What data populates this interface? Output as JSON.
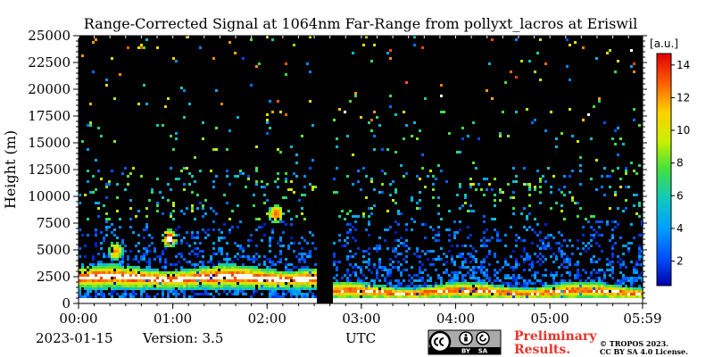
{
  "chart_data": {
    "type": "heatmap",
    "title": "Range-Corrected Signal at 1064nm Far-Range from pollyxt_lacros at Eriswil",
    "ylabel": "Height (m)",
    "xlabel": "",
    "x_ticks": [
      "00:00",
      "01:00",
      "02:00",
      "03:00",
      "04:00",
      "05:00",
      "05:59"
    ],
    "x_tick_values_hours": [
      0,
      1,
      2,
      3,
      4,
      5,
      5.983
    ],
    "xlim_hours": [
      0,
      5.983
    ],
    "y_ticks": [
      "0",
      "2500",
      "5000",
      "7500",
      "10000",
      "12500",
      "15000",
      "17500",
      "20000",
      "22500",
      "25000"
    ],
    "y_tick_values": [
      0,
      2500,
      5000,
      7500,
      10000,
      12500,
      15000,
      17500,
      20000,
      22500,
      25000
    ],
    "ylim": [
      0,
      25000
    ],
    "colorbar": {
      "unit": "[a.u.]",
      "ticks": [
        "2",
        "4",
        "6",
        "8",
        "10",
        "12",
        "14"
      ],
      "tick_values": [
        2,
        4,
        6,
        8,
        10,
        12,
        14
      ],
      "range": [
        0.5,
        14.7
      ],
      "colormap": "jet"
    },
    "features": [
      {
        "kind": "data-gap",
        "from_hours": 2.5,
        "to_hours": 2.67
      },
      {
        "kind": "boundary-layer",
        "from_hours": 0,
        "to_hours": 5.983,
        "top_m": 700,
        "value": 14
      },
      {
        "kind": "aerosol-layer",
        "from_hours": 0,
        "to_hours": 2.5,
        "bottom_m": 1500,
        "top_m": 3500,
        "value": 13
      },
      {
        "kind": "aerosol-layer",
        "from_hours": 2.67,
        "to_hours": 5.983,
        "bottom_m": 500,
        "top_m": 1900,
        "value": 12
      },
      {
        "kind": "cloud",
        "center_hours": 0.38,
        "center_m": 5000,
        "value": 11
      },
      {
        "kind": "cloud",
        "center_hours": 0.95,
        "center_m": 6200,
        "value": 13
      },
      {
        "kind": "cloud",
        "center_hours": 2.08,
        "center_m": 8500,
        "value": 12
      }
    ]
  },
  "footer": {
    "date": "2023-01-15",
    "version": "Version: 3.5",
    "timezone": "UTC",
    "preliminary_line1": "Preliminary",
    "preliminary_line2": "Results.",
    "copyright_line1": "© TROPOS 2023.",
    "copyright_line2": "CC BY SA 4.0 License.",
    "license_badge": [
      "BY",
      "SA"
    ],
    "license_icons": [
      "cc-icon",
      "by-icon",
      "sa-icon"
    ]
  }
}
